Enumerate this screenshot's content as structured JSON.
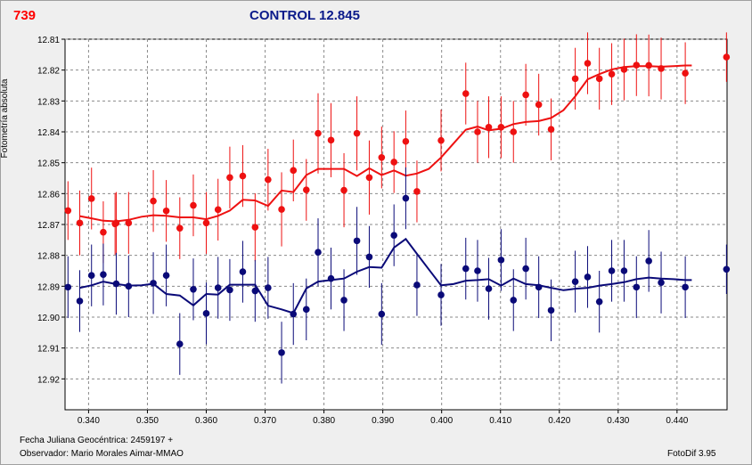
{
  "header": {
    "star_id": "739",
    "title": "CONTROL 12.845"
  },
  "footer": {
    "jd_label": "Fecha Juliana Geocéntrica: 2459197 +",
    "observer": "Observador: Mario Morales Aimar-MMAO",
    "software": "FotoDif 3.95"
  },
  "chart_data": {
    "type": "scatter",
    "title": "CONTROL 12.845",
    "ylabel": "Fotometría absoluta",
    "xlabel": "",
    "xlim": [
      0.336,
      0.4485
    ],
    "ylim": [
      12.81,
      12.93
    ],
    "y_inverted": true,
    "grid": true,
    "x_ticks": [
      "0.340",
      "0.350",
      "0.360",
      "0.370",
      "0.380",
      "0.390",
      "0.400",
      "0.410",
      "0.420",
      "0.430",
      "0.440"
    ],
    "y_ticks": [
      "12.81",
      "12.82",
      "12.83",
      "12.84",
      "12.85",
      "12.86",
      "12.87",
      "12.88",
      "12.89",
      "12.90",
      "12.91",
      "12.92"
    ],
    "colors": {
      "red": "#ee1111",
      "navy": "#0a0a78"
    },
    "series": [
      {
        "color": "red",
        "points": [
          [
            0.3365,
            12.8655
          ],
          [
            0.3385,
            12.8695
          ],
          [
            0.3405,
            12.8616
          ],
          [
            0.3425,
            12.8725
          ],
          [
            0.3445,
            12.8698
          ],
          [
            0.3447,
            12.8695
          ],
          [
            0.3468,
            12.8695
          ],
          [
            0.351,
            12.8624
          ],
          [
            0.3532,
            12.8656
          ],
          [
            0.3555,
            12.8712
          ],
          [
            0.3578,
            12.8638
          ],
          [
            0.36,
            12.8695
          ],
          [
            0.362,
            12.8652
          ],
          [
            0.364,
            12.8548
          ],
          [
            0.3662,
            12.8543
          ],
          [
            0.3683,
            12.8709
          ],
          [
            0.3705,
            12.8555
          ],
          [
            0.3728,
            12.8651
          ],
          [
            0.3748,
            12.8525
          ],
          [
            0.377,
            12.8588
          ],
          [
            0.379,
            12.8405
          ],
          [
            0.3812,
            12.8427
          ],
          [
            0.3834,
            12.8589
          ],
          [
            0.3856,
            12.8405
          ],
          [
            0.3877,
            12.8548
          ],
          [
            0.3898,
            12.8483
          ],
          [
            0.3919,
            12.8498
          ],
          [
            0.3939,
            12.8431
          ],
          [
            0.3958,
            12.8593
          ],
          [
            0.3999,
            12.8428
          ],
          [
            0.4041,
            12.8276
          ],
          [
            0.4061,
            12.84
          ],
          [
            0.408,
            12.8385
          ],
          [
            0.4101,
            12.8385
          ],
          [
            0.4122,
            12.84
          ],
          [
            0.4143,
            12.828
          ],
          [
            0.4165,
            12.8312
          ],
          [
            0.4186,
            12.8392
          ],
          [
            0.4227,
            12.8228
          ],
          [
            0.4248,
            12.8178
          ],
          [
            0.4268,
            12.8228
          ],
          [
            0.4289,
            12.8213
          ],
          [
            0.431,
            12.8198
          ],
          [
            0.4331,
            12.8184
          ],
          [
            0.4352,
            12.8185
          ],
          [
            0.4373,
            12.8195
          ],
          [
            0.4414,
            12.821
          ],
          [
            0.4484,
            12.8158
          ]
        ],
        "error": [
          0.0095,
          0.0105,
          0.01,
          0.01,
          0.01,
          0.01,
          0.01,
          0.01,
          0.01,
          0.01,
          0.01,
          0.01,
          0.01,
          0.01,
          0.01,
          0.011,
          0.01,
          0.012,
          0.01,
          0.01,
          0.013,
          0.012,
          0.012,
          0.012,
          0.012,
          0.01,
          0.01,
          0.01,
          0.01,
          0.01,
          0.01,
          0.01,
          0.01,
          0.01,
          0.01,
          0.01,
          0.01,
          0.01,
          0.01,
          0.01,
          0.01,
          0.01,
          0.01,
          0.01,
          0.01,
          0.01,
          0.01,
          0.008
        ],
        "trend": [
          [
            0.3385,
            12.8673
          ],
          [
            0.3405,
            12.868
          ],
          [
            0.3425,
            12.8688
          ],
          [
            0.3447,
            12.869
          ],
          [
            0.3468,
            12.8685
          ],
          [
            0.349,
            12.8675
          ],
          [
            0.351,
            12.867
          ],
          [
            0.3532,
            12.8672
          ],
          [
            0.3555,
            12.8677
          ],
          [
            0.3578,
            12.8677
          ],
          [
            0.36,
            12.8683
          ],
          [
            0.362,
            12.8672
          ],
          [
            0.364,
            12.8655
          ],
          [
            0.3662,
            12.862
          ],
          [
            0.3683,
            12.8622
          ],
          [
            0.3705,
            12.864
          ],
          [
            0.3728,
            12.859
          ],
          [
            0.3748,
            12.8595
          ],
          [
            0.377,
            12.854
          ],
          [
            0.379,
            12.852
          ],
          [
            0.3812,
            12.852
          ],
          [
            0.3834,
            12.852
          ],
          [
            0.3856,
            12.8543
          ],
          [
            0.3877,
            12.8518
          ],
          [
            0.3898,
            12.854
          ],
          [
            0.3919,
            12.8525
          ],
          [
            0.3939,
            12.8542
          ],
          [
            0.3958,
            12.8535
          ],
          [
            0.3978,
            12.852
          ],
          [
            0.3999,
            12.8483
          ],
          [
            0.402,
            12.8438
          ],
          [
            0.4041,
            12.8393
          ],
          [
            0.4061,
            12.8383
          ],
          [
            0.408,
            12.8395
          ],
          [
            0.4101,
            12.839
          ],
          [
            0.4122,
            12.8375
          ],
          [
            0.4143,
            12.8368
          ],
          [
            0.4165,
            12.8365
          ],
          [
            0.4186,
            12.8355
          ],
          [
            0.4207,
            12.833
          ],
          [
            0.4227,
            12.8285
          ],
          [
            0.4248,
            12.823
          ],
          [
            0.4268,
            12.8213
          ],
          [
            0.4289,
            12.8198
          ],
          [
            0.431,
            12.819
          ],
          [
            0.4331,
            12.8187
          ],
          [
            0.4352,
            12.8187
          ],
          [
            0.4373,
            12.8189
          ],
          [
            0.4394,
            12.8187
          ],
          [
            0.4414,
            12.8185
          ],
          [
            0.4425,
            12.8185
          ]
        ]
      },
      {
        "color": "navy",
        "points": [
          [
            0.3365,
            12.8903
          ],
          [
            0.3385,
            12.8948
          ],
          [
            0.3405,
            12.8865
          ],
          [
            0.3425,
            12.8862
          ],
          [
            0.3447,
            12.8892
          ],
          [
            0.3468,
            12.89
          ],
          [
            0.351,
            12.889
          ],
          [
            0.3532,
            12.8865
          ],
          [
            0.3555,
            12.9087
          ],
          [
            0.3578,
            12.891
          ],
          [
            0.36,
            12.8988
          ],
          [
            0.362,
            12.8905
          ],
          [
            0.364,
            12.8912
          ],
          [
            0.3662,
            12.8853
          ],
          [
            0.3683,
            12.8915
          ],
          [
            0.3705,
            12.8905
          ],
          [
            0.3728,
            12.9115
          ],
          [
            0.3748,
            12.899
          ],
          [
            0.377,
            12.8975
          ],
          [
            0.379,
            12.879
          ],
          [
            0.3812,
            12.8875
          ],
          [
            0.3834,
            12.8945
          ],
          [
            0.3856,
            12.8753
          ],
          [
            0.3877,
            12.8805
          ],
          [
            0.3898,
            12.899
          ],
          [
            0.3919,
            12.8735
          ],
          [
            0.3939,
            12.8615
          ],
          [
            0.3958,
            12.8896
          ],
          [
            0.3999,
            12.8928
          ],
          [
            0.4041,
            12.8843
          ],
          [
            0.4061,
            12.885
          ],
          [
            0.408,
            12.8908
          ],
          [
            0.4101,
            12.8815
          ],
          [
            0.4122,
            12.8945
          ],
          [
            0.4143,
            12.8843
          ],
          [
            0.4165,
            12.8903
          ],
          [
            0.4186,
            12.8978
          ],
          [
            0.4227,
            12.8885
          ],
          [
            0.4248,
            12.887
          ],
          [
            0.4268,
            12.895
          ],
          [
            0.4289,
            12.885
          ],
          [
            0.431,
            12.885
          ],
          [
            0.4331,
            12.8903
          ],
          [
            0.4352,
            12.8818
          ],
          [
            0.4373,
            12.8888
          ],
          [
            0.4414,
            12.8903
          ],
          [
            0.4484,
            12.8845
          ]
        ],
        "error": [
          0.01,
          0.01,
          0.01,
          0.01,
          0.01,
          0.01,
          0.01,
          0.01,
          0.01,
          0.01,
          0.01,
          0.01,
          0.01,
          0.01,
          0.01,
          0.01,
          0.01,
          0.01,
          0.01,
          0.011,
          0.01,
          0.01,
          0.011,
          0.01,
          0.01,
          0.01,
          0.01,
          0.01,
          0.01,
          0.01,
          0.01,
          0.01,
          0.01,
          0.01,
          0.01,
          0.01,
          0.01,
          0.01,
          0.01,
          0.01,
          0.01,
          0.01,
          0.01,
          0.01,
          0.01,
          0.01,
          0.008
        ],
        "trend": [
          [
            0.3385,
            12.8905
          ],
          [
            0.3405,
            12.8897
          ],
          [
            0.3425,
            12.8885
          ],
          [
            0.3447,
            12.8893
          ],
          [
            0.3468,
            12.8898
          ],
          [
            0.349,
            12.8897
          ],
          [
            0.351,
            12.8892
          ],
          [
            0.3532,
            12.8925
          ],
          [
            0.3555,
            12.893
          ],
          [
            0.3578,
            12.8962
          ],
          [
            0.36,
            12.8925
          ],
          [
            0.362,
            12.8927
          ],
          [
            0.364,
            12.8895
          ],
          [
            0.3662,
            12.8895
          ],
          [
            0.3683,
            12.8895
          ],
          [
            0.3705,
            12.8963
          ],
          [
            0.3728,
            12.8975
          ],
          [
            0.3748,
            12.8987
          ],
          [
            0.377,
            12.8907
          ],
          [
            0.379,
            12.8885
          ],
          [
            0.3812,
            12.888
          ],
          [
            0.3834,
            12.8875
          ],
          [
            0.3856,
            12.8853
          ],
          [
            0.3877,
            12.8838
          ],
          [
            0.3898,
            12.884
          ],
          [
            0.3919,
            12.8775
          ],
          [
            0.3939,
            12.8747
          ],
          [
            0.3958,
            12.8795
          ],
          [
            0.3978,
            12.8845
          ],
          [
            0.3999,
            12.8897
          ],
          [
            0.402,
            12.8893
          ],
          [
            0.4041,
            12.8882
          ],
          [
            0.4061,
            12.888
          ],
          [
            0.408,
            12.8877
          ],
          [
            0.4101,
            12.8898
          ],
          [
            0.4122,
            12.8875
          ],
          [
            0.4143,
            12.8893
          ],
          [
            0.4165,
            12.8897
          ],
          [
            0.4186,
            12.8905
          ],
          [
            0.4207,
            12.8913
          ],
          [
            0.4227,
            12.8908
          ],
          [
            0.4248,
            12.8905
          ],
          [
            0.4268,
            12.8898
          ],
          [
            0.4289,
            12.8893
          ],
          [
            0.431,
            12.8887
          ],
          [
            0.4331,
            12.8877
          ],
          [
            0.4352,
            12.8872
          ],
          [
            0.4373,
            12.8875
          ],
          [
            0.4394,
            12.8877
          ],
          [
            0.4414,
            12.888
          ],
          [
            0.4425,
            12.888
          ]
        ]
      }
    ]
  }
}
